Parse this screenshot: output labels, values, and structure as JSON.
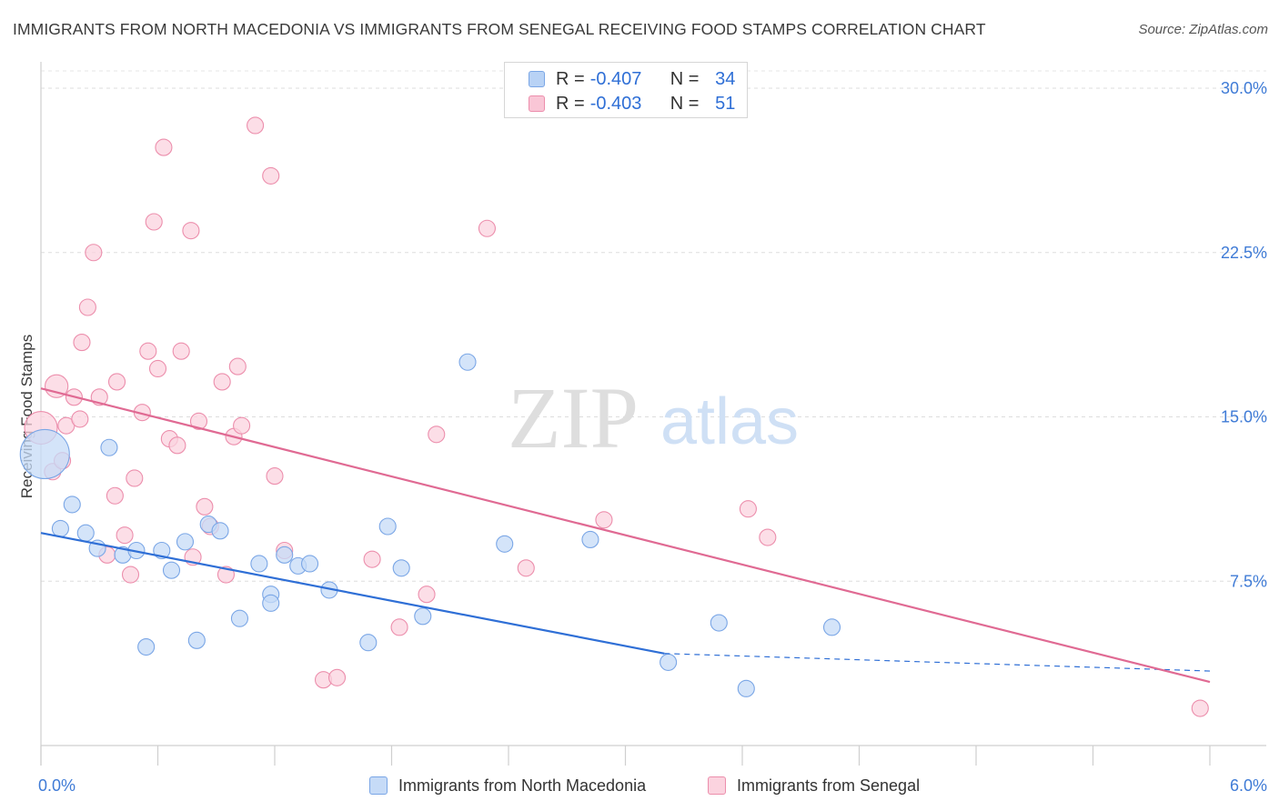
{
  "title": "IMMIGRANTS FROM NORTH MACEDONIA VS IMMIGRANTS FROM SENEGAL RECEIVING FOOD STAMPS CORRELATION CHART",
  "source": "Source: ZipAtlas.com",
  "watermark": {
    "zip": "ZIP",
    "atlas": "atlas"
  },
  "legend_top": {
    "rows": [
      {
        "r_key": "R =",
        "r_value": "-0.407",
        "n_key": "N =",
        "n_value": "34",
        "color": "#b8d2f5",
        "border": "#7aa6e6"
      },
      {
        "r_key": "R =",
        "r_value": "-0.403",
        "n_key": "N =",
        "n_value": "51",
        "color": "#f9c6d6",
        "border": "#ec8eac"
      }
    ]
  },
  "legend_bottom": {
    "items": [
      {
        "label": "Immigrants from North Macedonia",
        "color": "#c6dbf7",
        "border": "#7aa6e6"
      },
      {
        "label": "Immigrants from Senegal",
        "color": "#fbd3df",
        "border": "#ec8eac"
      }
    ]
  },
  "chart_data": {
    "type": "scatter",
    "title": "IMMIGRANTS FROM NORTH MACEDONIA VS IMMIGRANTS FROM SENEGAL RECEIVING FOOD STAMPS CORRELATION CHART",
    "xlabel": "",
    "ylabel": "Receiving Food Stamps",
    "xlim": [
      0,
      6
    ],
    "ylim": [
      0,
      30
    ],
    "x_ticks_labels": [
      "0.0%",
      "6.0%"
    ],
    "y_ticks": [
      7.5,
      15,
      22.5,
      30
    ],
    "y_tick_labels": [
      "7.5%",
      "15.0%",
      "22.5%",
      "30.0%"
    ],
    "grid": true,
    "legend_placement": "top-center",
    "series": [
      {
        "name": "Immigrants from North Macedonia",
        "color": "#7aa6e6",
        "fill": "#c6dbf7",
        "r": -0.407,
        "n": 34,
        "trend": {
          "x0": 0,
          "y0": 9.7,
          "x1": 3.2,
          "y1": 4.2,
          "dash_to_x": 6.0,
          "dash_to_y": 3.4,
          "color": "#2f6fd6"
        },
        "points": [
          {
            "x": 0.02,
            "y": 13.3,
            "s": 3
          },
          {
            "x": 0.1,
            "y": 9.9
          },
          {
            "x": 0.16,
            "y": 11.0
          },
          {
            "x": 0.23,
            "y": 9.7
          },
          {
            "x": 0.29,
            "y": 9.0
          },
          {
            "x": 0.35,
            "y": 13.6
          },
          {
            "x": 0.42,
            "y": 8.7
          },
          {
            "x": 0.49,
            "y": 8.9
          },
          {
            "x": 0.54,
            "y": 4.5
          },
          {
            "x": 0.62,
            "y": 8.9
          },
          {
            "x": 0.67,
            "y": 8.0
          },
          {
            "x": 0.74,
            "y": 9.3
          },
          {
            "x": 0.8,
            "y": 4.8
          },
          {
            "x": 0.86,
            "y": 10.1
          },
          {
            "x": 0.92,
            "y": 9.8
          },
          {
            "x": 1.02,
            "y": 5.8
          },
          {
            "x": 1.12,
            "y": 8.3
          },
          {
            "x": 1.18,
            "y": 6.9
          },
          {
            "x": 1.18,
            "y": 6.5
          },
          {
            "x": 1.25,
            "y": 8.7
          },
          {
            "x": 1.32,
            "y": 8.2
          },
          {
            "x": 1.38,
            "y": 8.3
          },
          {
            "x": 1.48,
            "y": 7.1
          },
          {
            "x": 1.68,
            "y": 4.7
          },
          {
            "x": 1.78,
            "y": 10.0
          },
          {
            "x": 1.85,
            "y": 8.1
          },
          {
            "x": 1.96,
            "y": 5.9
          },
          {
            "x": 2.19,
            "y": 17.5
          },
          {
            "x": 2.38,
            "y": 9.2
          },
          {
            "x": 2.82,
            "y": 9.4
          },
          {
            "x": 3.22,
            "y": 3.8
          },
          {
            "x": 3.48,
            "y": 5.6
          },
          {
            "x": 3.62,
            "y": 2.6
          },
          {
            "x": 4.06,
            "y": 5.4
          }
        ]
      },
      {
        "name": "Immigrants from Senegal",
        "color": "#ec8eac",
        "fill": "#fbd3df",
        "r": -0.403,
        "n": 51,
        "trend": {
          "x0": 0,
          "y0": 16.3,
          "x1": 6.0,
          "y1": 2.9,
          "color": "#e06a93"
        },
        "points": [
          {
            "x": 0.0,
            "y": 14.5,
            "s": 2
          },
          {
            "x": 0.06,
            "y": 12.5
          },
          {
            "x": 0.08,
            "y": 16.4,
            "s": 1.4
          },
          {
            "x": 0.11,
            "y": 13.0
          },
          {
            "x": 0.13,
            "y": 14.6
          },
          {
            "x": 0.17,
            "y": 15.9
          },
          {
            "x": 0.2,
            "y": 14.9
          },
          {
            "x": 0.21,
            "y": 18.4
          },
          {
            "x": 0.24,
            "y": 20.0
          },
          {
            "x": 0.27,
            "y": 22.5
          },
          {
            "x": 0.3,
            "y": 15.9
          },
          {
            "x": 0.34,
            "y": 8.7
          },
          {
            "x": 0.38,
            "y": 11.4
          },
          {
            "x": 0.39,
            "y": 16.6
          },
          {
            "x": 0.43,
            "y": 9.6
          },
          {
            "x": 0.46,
            "y": 7.8
          },
          {
            "x": 0.48,
            "y": 12.2
          },
          {
            "x": 0.52,
            "y": 15.2
          },
          {
            "x": 0.55,
            "y": 18.0
          },
          {
            "x": 0.58,
            "y": 23.9
          },
          {
            "x": 0.6,
            "y": 17.2
          },
          {
            "x": 0.63,
            "y": 27.3
          },
          {
            "x": 0.66,
            "y": 14.0
          },
          {
            "x": 0.7,
            "y": 13.7
          },
          {
            "x": 0.72,
            "y": 18.0
          },
          {
            "x": 0.77,
            "y": 23.5
          },
          {
            "x": 0.78,
            "y": 8.6
          },
          {
            "x": 0.81,
            "y": 14.8
          },
          {
            "x": 0.84,
            "y": 10.9
          },
          {
            "x": 0.87,
            "y": 10.0
          },
          {
            "x": 0.93,
            "y": 16.6
          },
          {
            "x": 0.95,
            "y": 7.8
          },
          {
            "x": 0.99,
            "y": 14.1
          },
          {
            "x": 1.01,
            "y": 17.3
          },
          {
            "x": 1.03,
            "y": 14.6
          },
          {
            "x": 1.1,
            "y": 28.3
          },
          {
            "x": 1.18,
            "y": 26.0
          },
          {
            "x": 1.2,
            "y": 12.3
          },
          {
            "x": 1.25,
            "y": 8.9
          },
          {
            "x": 1.45,
            "y": 3.0
          },
          {
            "x": 1.52,
            "y": 3.1
          },
          {
            "x": 1.7,
            "y": 8.5
          },
          {
            "x": 1.84,
            "y": 5.4
          },
          {
            "x": 1.98,
            "y": 6.9
          },
          {
            "x": 2.03,
            "y": 14.2
          },
          {
            "x": 2.29,
            "y": 23.6
          },
          {
            "x": 2.49,
            "y": 8.1
          },
          {
            "x": 2.89,
            "y": 10.3
          },
          {
            "x": 3.63,
            "y": 10.8
          },
          {
            "x": 3.73,
            "y": 9.5
          },
          {
            "x": 5.95,
            "y": 1.7
          }
        ]
      }
    ]
  }
}
